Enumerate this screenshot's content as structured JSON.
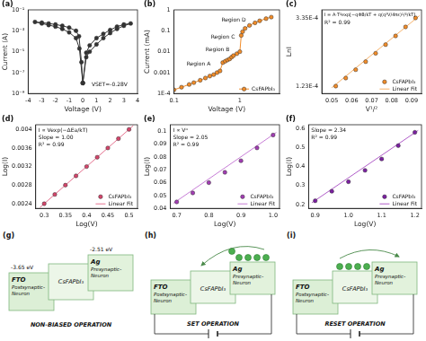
{
  "chart_data": [
    {
      "type": "line",
      "title": "(a)",
      "x_label": "Voltage (V)",
      "y_label": "Current (A)",
      "log": "y",
      "grid": false,
      "xlim": [
        -4,
        4
      ],
      "xticks": [
        -4,
        -3,
        -2,
        -1,
        0,
        1,
        2,
        3,
        4
      ],
      "ylim": [
        1e-09,
        0.1
      ],
      "yticks": [
        {
          "value": 1e-09,
          "label": "10⁻⁹"
        },
        {
          "value": 1e-07,
          "label": "10⁻⁷"
        },
        {
          "value": 1e-05,
          "label": "10⁻⁵"
        },
        {
          "value": 0.001,
          "label": "10⁻³"
        },
        {
          "value": 0.1,
          "label": "10⁻¹"
        }
      ],
      "annotations": [
        "VSET=-0.28V"
      ],
      "series": [
        {
          "color": "#333333",
          "marker": "circle",
          "line_style": "solid",
          "x": [
            0,
            0.25,
            0.5,
            1,
            1.5,
            2,
            2.5,
            3,
            3.5,
            3,
            2.5,
            2,
            1.5,
            1,
            0.5,
            0.25,
            0,
            -0.1,
            -0.28,
            -0.5,
            -1,
            -1.5,
            -2,
            -2.5,
            -3,
            -3.5,
            -3,
            -2.5,
            -2,
            -1.5,
            -1,
            -0.5,
            -0.25,
            0
          ],
          "values": [
            1e-08,
            3e-06,
            1e-05,
            5e-05,
            0.0002,
            0.0006,
            0.0015,
            0.003,
            0.005,
            0.004,
            0.0025,
            0.0012,
            0.0005,
            0.0002,
            4e-05,
            8e-06,
            1e-08,
            1e-06,
            0.0003,
            0.001,
            0.002,
            0.003,
            0.004,
            0.005,
            0.006,
            0.007,
            0.005,
            0.0035,
            0.0025,
            0.0015,
            0.0007,
            0.0002,
            2e-05,
            1e-08
          ]
        }
      ]
    },
    {
      "type": "line",
      "title": "(b)",
      "x_label": "Voltage (V)",
      "y_label": "Current (mA)",
      "log": true,
      "grid": false,
      "xlim": [
        0.1,
        4
      ],
      "xticks": [
        0.1,
        1
      ],
      "ylim": [
        0.0001,
        1
      ],
      "yticks": [
        {
          "value": 0.0001,
          "label": "1E-4"
        },
        0.001,
        0.01,
        0.1,
        1
      ],
      "annotations": [
        "Region A",
        "Region B",
        "Region C",
        "Region D"
      ],
      "legend": "lower right",
      "series": [
        {
          "name": "CsFAPbI₃",
          "color": "#f28c28",
          "marker": "circle",
          "line_style": "solid",
          "x": [
            0.1,
            0.13,
            0.17,
            0.2,
            0.25,
            0.3,
            0.35,
            0.4,
            0.45,
            0.5,
            0.55,
            0.6,
            0.65,
            0.7,
            0.75,
            0.8,
            0.9,
            1.0,
            1.05,
            1.1,
            1.2,
            1.4,
            1.7,
            2.0,
            2.5,
            3.0
          ],
          "values": [
            0.00015,
            0.0002,
            0.00027,
            0.00033,
            0.00043,
            0.00055,
            0.00068,
            0.0008,
            0.001,
            0.0012,
            0.003,
            0.0035,
            0.004,
            0.0045,
            0.0055,
            0.0065,
            0.008,
            0.01,
            0.06,
            0.09,
            0.13,
            0.18,
            0.24,
            0.3,
            0.38,
            0.45
          ]
        }
      ]
    },
    {
      "type": "scatter",
      "title": "(c)",
      "x_label": "V¹/²",
      "y_label": "LnI",
      "grid": false,
      "xlim": [
        0.045,
        0.095
      ],
      "xticks": [
        0.05,
        0.06,
        0.07,
        0.08,
        0.09
      ],
      "ylim": [
        0.0001,
        0.00036
      ],
      "yticks": [
        {
          "value": 0.000123,
          "label": "1.23E-4"
        },
        {
          "value": 0.000335,
          "label": "3.35E-4"
        }
      ],
      "annotations": [
        "I = A·T²exp[−qΦB/kT + q(q³V/4πε)¹/²/kT]",
        "R² = 0.99"
      ],
      "legend": "lower right",
      "series": [
        {
          "name": "CsFAPbI₃",
          "color": "#f28c28",
          "marker": "circle",
          "line_style": "none",
          "x": [
            0.052,
            0.057,
            0.062,
            0.067,
            0.072,
            0.077,
            0.082,
            0.087,
            0.092
          ],
          "values": [
            0.000123,
            0.000148,
            0.000174,
            0.000199,
            0.000225,
            0.000252,
            0.000279,
            0.000307,
            0.000335
          ]
        },
        {
          "name": "Linear Fit",
          "color": "#f6b26b",
          "marker": "none",
          "line_style": "solid",
          "x": [
            0.05,
            0.094
          ],
          "values": [
            0.000118,
            0.000342
          ]
        }
      ]
    },
    {
      "type": "scatter",
      "title": "(d)",
      "x_label": "Log(V)",
      "y_label": "Log(I)",
      "grid": false,
      "xlim": [
        0.28,
        0.52
      ],
      "xticks": [
        0.3,
        0.35,
        0.4,
        0.45,
        0.5
      ],
      "ylim": [
        0.0023,
        0.0041
      ],
      "yticks": [
        0.0024,
        0.0028,
        0.0032,
        0.0036,
        0.004
      ],
      "annotations": [
        "I ∝ Vexp(−ΔEa/kT)",
        "Slope = 1.00",
        "R² = 0.99"
      ],
      "legend": "lower right",
      "series": [
        {
          "name": "CsFAPbI₃",
          "color": "#d6456b",
          "marker": "circle",
          "line_style": "none",
          "x": [
            0.3,
            0.325,
            0.35,
            0.375,
            0.4,
            0.425,
            0.45,
            0.475,
            0.5
          ],
          "values": [
            0.0024,
            0.0026,
            0.0028,
            0.003,
            0.0032,
            0.0034,
            0.0036,
            0.0038,
            0.004
          ]
        },
        {
          "name": "Linear Fit",
          "color": "#e57390",
          "marker": "none",
          "line_style": "solid",
          "x": [
            0.29,
            0.51
          ],
          "values": [
            0.00232,
            0.00408
          ]
        }
      ]
    },
    {
      "type": "scatter",
      "title": "(e)",
      "x_label": "Log(V)",
      "y_label": "Log(I)",
      "grid": false,
      "xlim": [
        0.68,
        1.02
      ],
      "xticks": [
        0.7,
        0.8,
        0.9,
        {
          "value": 1,
          "label": "1.0"
        }
      ],
      "ylim": [
        0.04,
        0.105
      ],
      "yticks": [
        0.04,
        0.05,
        0.06,
        0.07,
        0.08,
        0.09,
        0.1
      ],
      "annotations": [
        "I ∝ Vᵅ",
        "Slope = 2.05",
        "R² = 0.99"
      ],
      "legend": "lower right",
      "series": [
        {
          "name": "CsFAPbI₃",
          "color": "#a23cb4",
          "marker": "circle",
          "line_style": "none",
          "x": [
            0.7,
            0.75,
            0.8,
            0.85,
            0.9,
            0.95,
            1.0
          ],
          "values": [
            0.045,
            0.052,
            0.06,
            0.068,
            0.077,
            0.087,
            0.097
          ]
        },
        {
          "name": "Linear Fit",
          "color": "#c77dd6",
          "marker": "none",
          "line_style": "solid",
          "x": [
            0.69,
            1.01
          ],
          "values": [
            0.044,
            0.099
          ]
        }
      ]
    },
    {
      "type": "scatter",
      "title": "(f)",
      "x_label": "Log(V)",
      "y_label": "Log(I)",
      "grid": false,
      "xlim": [
        0.88,
        1.22
      ],
      "xticks": [
        0.9,
        {
          "value": 1,
          "label": "1.0"
        },
        1.1,
        1.2
      ],
      "ylim": [
        0.18,
        0.62
      ],
      "yticks": [
        0.2,
        0.3,
        0.4,
        0.5,
        0.6
      ],
      "annotations": [
        "Slope = 2.34",
        "R² = 0.99"
      ],
      "legend": "lower right",
      "series": [
        {
          "name": "CsFAPbI₃",
          "color": "#7b1fa2",
          "marker": "circle",
          "line_style": "none",
          "x": [
            0.9,
            0.95,
            1.0,
            1.05,
            1.1,
            1.15,
            1.2
          ],
          "values": [
            0.22,
            0.27,
            0.32,
            0.38,
            0.44,
            0.51,
            0.58
          ]
        },
        {
          "name": "Linear Fit",
          "color": "#b05cc8",
          "marker": "none",
          "line_style": "solid",
          "x": [
            0.89,
            1.21
          ],
          "values": [
            0.21,
            0.59
          ]
        }
      ]
    }
  ],
  "diagrams": [
    {
      "title": "(g)",
      "caption": "NON-BIASED OPERATION",
      "levels": [
        "-3.65 eV",
        "-2.51 eV"
      ],
      "layers": [
        {
          "name": "FTO",
          "role": "Postsynaptic-Neuron"
        },
        {
          "name": "CsFAPbI₃"
        },
        {
          "name": "Ag",
          "role": "Presynaptic-Neuron"
        }
      ]
    },
    {
      "title": "(h)",
      "caption": "SET OPERATION",
      "layers": [
        {
          "name": "FTO",
          "role": "Postsynaptic-Neuron"
        },
        {
          "name": "CsFAPbI₃"
        },
        {
          "name": "Ag",
          "role": "Presynaptic-Neuron"
        }
      ]
    },
    {
      "title": "(i)",
      "caption": "RESET OPERATION",
      "layers": [
        {
          "name": "FTO",
          "role": "Postsynaptic-Neuron"
        },
        {
          "name": "CsFAPbI₃"
        },
        {
          "name": "Ag",
          "role": "Presynaptic-Neuron"
        }
      ]
    }
  ]
}
